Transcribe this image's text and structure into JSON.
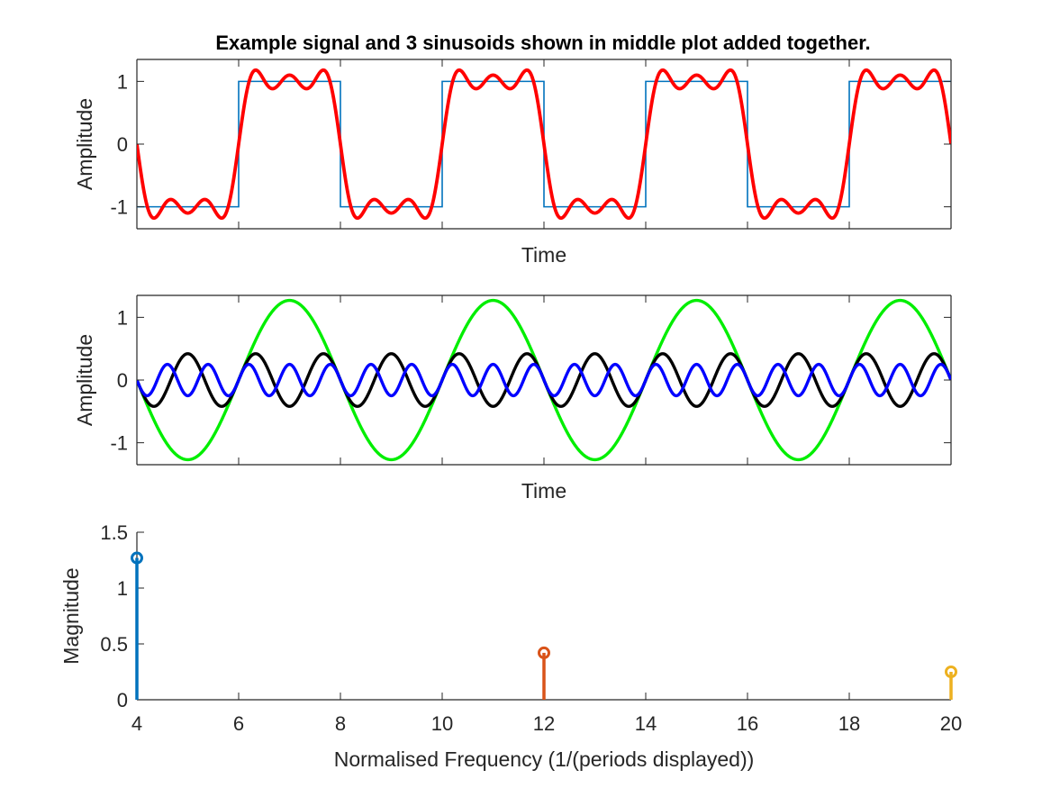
{
  "chart_data": [
    {
      "type": "line",
      "title": "Example signal and 3 sinusoids shown in middle plot added together.",
      "xlabel": "Time",
      "ylabel": "Amplitude",
      "xlim": [
        0,
        8
      ],
      "ylim": [
        -1.35,
        1.35
      ],
      "grid": false,
      "yticks": [
        -1,
        0,
        1
      ],
      "ytick_labels": [
        "-1",
        "0",
        "1"
      ],
      "xticks": [
        1,
        2,
        3,
        4,
        5,
        6,
        7
      ],
      "xtick_labels": [
        "",
        "",
        "",
        "",
        "",
        "",
        ""
      ],
      "series": [
        {
          "kind": "square",
          "period": 2,
          "amplitude": 1,
          "color": "#0072BD",
          "points": [
            [
              0,
              -1
            ],
            [
              1,
              -1
            ],
            [
              1,
              1
            ],
            [
              2,
              1
            ],
            [
              2,
              -1
            ],
            [
              3,
              -1
            ],
            [
              3,
              1
            ],
            [
              4,
              1
            ],
            [
              4,
              -1
            ],
            [
              5,
              -1
            ],
            [
              5,
              1
            ],
            [
              6,
              1
            ],
            [
              6,
              -1
            ],
            [
              7,
              -1
            ],
            [
              7,
              1
            ],
            [
              8,
              1
            ]
          ]
        },
        {
          "kind": "sum",
          "components": [
            {
              "frequency": 0.5,
              "amplitude": 1.27
            },
            {
              "frequency": 1.5,
              "amplitude": 0.42
            },
            {
              "frequency": 2.5,
              "amplitude": 0.25
            }
          ],
          "phase_sign": -1,
          "color": "#FF0000"
        }
      ]
    },
    {
      "type": "line",
      "xlabel": "Time",
      "ylabel": "Amplitude",
      "xlim": [
        0,
        8
      ],
      "ylim": [
        -1.35,
        1.35
      ],
      "grid": false,
      "yticks": [
        -1,
        0,
        1
      ],
      "ytick_labels": [
        "-1",
        "0",
        "1"
      ],
      "xticks": [
        1,
        2,
        3,
        4,
        5,
        6,
        7
      ],
      "xtick_labels": [
        "",
        "",
        "",
        "",
        "",
        "",
        ""
      ],
      "series": [
        {
          "kind": "sine",
          "frequency": 0.5,
          "amplitude": 1.27,
          "phase_sign": -1,
          "color": "#00EE00"
        },
        {
          "kind": "sine",
          "frequency": 1.5,
          "amplitude": 0.42,
          "phase_sign": -1,
          "color": "#000000"
        },
        {
          "kind": "sine",
          "frequency": 2.5,
          "amplitude": 0.25,
          "phase_sign": -1,
          "color": "#0000FF"
        }
      ]
    },
    {
      "type": "stem",
      "xlabel": "Normalised Frequency (1/(periods displayed))",
      "ylabel": "Magnitude",
      "xlim": [
        4,
        20
      ],
      "ylim": [
        0,
        1.5
      ],
      "grid": false,
      "xticks": [
        4,
        6,
        8,
        10,
        12,
        14,
        16,
        18,
        20
      ],
      "xtick_labels": [
        "4",
        "6",
        "8",
        "10",
        "12",
        "14",
        "16",
        "18",
        "20"
      ],
      "yticks": [
        0,
        0.5,
        1,
        1.5
      ],
      "ytick_labels": [
        "0",
        "0.5",
        "1",
        "1.5"
      ],
      "series": [
        {
          "x": [
            4
          ],
          "values": [
            1.27
          ],
          "color": "#0072BD"
        },
        {
          "x": [
            12
          ],
          "values": [
            0.42
          ],
          "color": "#D95319"
        },
        {
          "x": [
            20
          ],
          "values": [
            0.25
          ],
          "color": "#EDB120"
        }
      ]
    }
  ]
}
